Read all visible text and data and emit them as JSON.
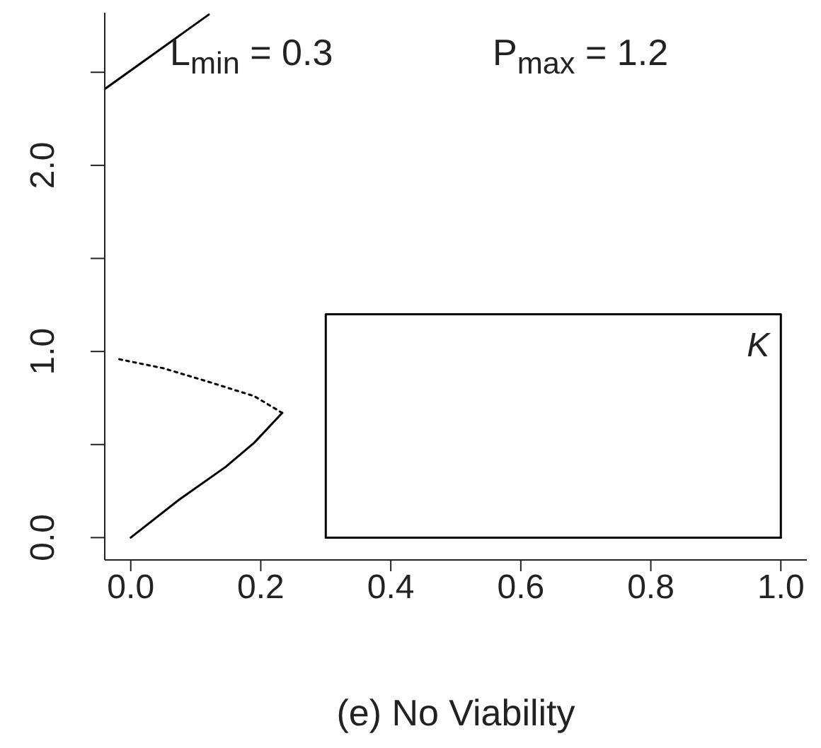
{
  "chart_data": {
    "type": "line",
    "xlabel": "(e) No Viability",
    "annotations": [
      "L$_{min}$ = 0.3",
      "P$_{max}$ = 1.2",
      {
        "text": "K",
        "x": 1,
        "y": 1.2
      }
    ],
    "xlim": [
      -0.04,
      1.04
    ],
    "ylim": [
      -0.12,
      2.82
    ],
    "xticks": [
      {
        "value": 0,
        "label": "0.0"
      },
      0.2,
      0.4,
      0.6,
      0.8,
      {
        "value": 1,
        "label": "1.0"
      }
    ],
    "yticks": [
      {
        "value": 0,
        "label": "0.0"
      },
      {
        "value": 0.5,
        "label": null
      },
      {
        "value": 1,
        "label": "1.0"
      },
      {
        "value": 1.5,
        "label": null
      },
      {
        "value": 2,
        "label": "2.0"
      },
      {
        "value": 2.5,
        "label": null
      }
    ],
    "grid": false,
    "marker": "none",
    "series": [
      {
        "color": "#000000",
        "line_style": "solid",
        "x": [
          0,
          0.073,
          0.146,
          0.19,
          0.233
        ],
        "values": [
          0,
          0.2,
          0.38,
          0.51,
          0.67
        ]
      },
      {
        "color": "#000000",
        "line_style": "dotted",
        "x": [
          0.233,
          0.19,
          0.117,
          0.05,
          -0.02
        ],
        "values": [
          0.67,
          0.76,
          0.84,
          0.91,
          0.96
        ]
      },
      {
        "color": "#000000",
        "line_style": "solid",
        "x": [
          -0.04,
          0.12
        ],
        "values": [
          2.41,
          2.81
        ]
      },
      {
        "color": "#000000",
        "line_style": "solid",
        "x": [
          0.3,
          0.3,
          1,
          1
        ],
        "values": [
          0,
          1.2,
          1.2,
          0
        ]
      },
      {
        "color": "#000000",
        "line_style": "solid",
        "x": [
          0.3,
          1
        ],
        "values": [
          0,
          0
        ]
      }
    ]
  }
}
